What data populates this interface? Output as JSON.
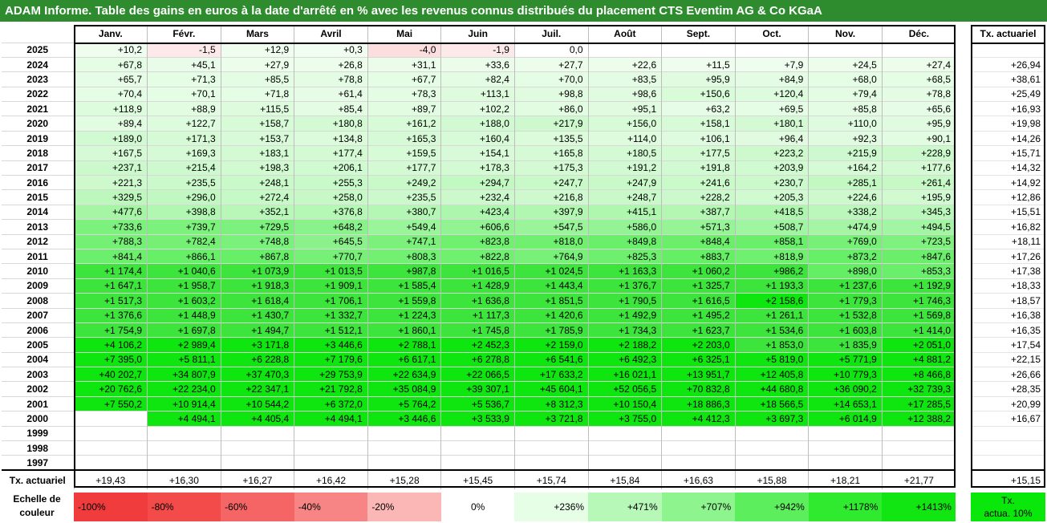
{
  "title": "ADAM Informe. Table des gains en euros à la date d'arrêté en % avec les revenus connus distribués du placement CTS Eventim AG & Co KGaA",
  "months": [
    "Janv.",
    "Févr.",
    "Mars",
    "Avril",
    "Mai",
    "Juin",
    "Juil.",
    "Août",
    "Sept.",
    "Oct.",
    "Nov.",
    "Déc."
  ],
  "tx_header": "Tx. actuariel",
  "rows": [
    {
      "year": "2025",
      "values": [
        "+10,2",
        "-1,5",
        "+12,9",
        "+0,3",
        "-4,0",
        "-1,9",
        "0,0",
        "",
        "",
        "",
        "",
        ""
      ],
      "tx": ""
    },
    {
      "year": "2024",
      "values": [
        "+67,8",
        "+45,1",
        "+27,9",
        "+26,8",
        "+31,1",
        "+33,6",
        "+27,7",
        "+22,6",
        "+11,5",
        "+7,9",
        "+24,5",
        "+27,4"
      ],
      "tx": "+26,94"
    },
    {
      "year": "2023",
      "values": [
        "+65,7",
        "+71,3",
        "+85,5",
        "+78,8",
        "+67,7",
        "+82,4",
        "+70,0",
        "+83,5",
        "+95,9",
        "+84,9",
        "+68,0",
        "+68,5"
      ],
      "tx": "+38,61"
    },
    {
      "year": "2022",
      "values": [
        "+70,4",
        "+70,1",
        "+71,8",
        "+61,4",
        "+78,3",
        "+113,1",
        "+98,8",
        "+98,6",
        "+150,6",
        "+120,4",
        "+79,4",
        "+78,8"
      ],
      "tx": "+25,49"
    },
    {
      "year": "2021",
      "values": [
        "+118,9",
        "+88,9",
        "+115,5",
        "+85,4",
        "+89,7",
        "+102,2",
        "+86,0",
        "+95,1",
        "+63,2",
        "+69,5",
        "+85,8",
        "+65,6"
      ],
      "tx": "+16,93"
    },
    {
      "year": "2020",
      "values": [
        "+89,4",
        "+122,7",
        "+158,7",
        "+180,8",
        "+161,2",
        "+188,0",
        "+217,9",
        "+156,0",
        "+158,1",
        "+180,1",
        "+110,0",
        "+95,9"
      ],
      "tx": "+19,98"
    },
    {
      "year": "2019",
      "values": [
        "+189,0",
        "+171,3",
        "+153,7",
        "+134,8",
        "+165,3",
        "+160,4",
        "+135,5",
        "+114,0",
        "+106,1",
        "+96,4",
        "+92,3",
        "+90,1"
      ],
      "tx": "+14,26"
    },
    {
      "year": "2018",
      "values": [
        "+167,5",
        "+169,3",
        "+183,1",
        "+177,4",
        "+159,5",
        "+154,1",
        "+165,8",
        "+180,5",
        "+177,5",
        "+223,2",
        "+215,9",
        "+228,9"
      ],
      "tx": "+15,71"
    },
    {
      "year": "2017",
      "values": [
        "+237,1",
        "+215,4",
        "+198,3",
        "+206,1",
        "+177,7",
        "+178,3",
        "+175,3",
        "+191,2",
        "+191,8",
        "+203,9",
        "+164,2",
        "+177,6"
      ],
      "tx": "+14,32"
    },
    {
      "year": "2016",
      "values": [
        "+221,3",
        "+235,5",
        "+248,1",
        "+255,3",
        "+249,2",
        "+294,7",
        "+247,7",
        "+247,9",
        "+241,6",
        "+230,7",
        "+285,1",
        "+261,4"
      ],
      "tx": "+14,92"
    },
    {
      "year": "2015",
      "values": [
        "+329,5",
        "+296,0",
        "+272,4",
        "+258,0",
        "+235,5",
        "+232,4",
        "+216,8",
        "+248,7",
        "+228,2",
        "+205,3",
        "+224,6",
        "+195,9"
      ],
      "tx": "+12,86"
    },
    {
      "year": "2014",
      "values": [
        "+477,6",
        "+398,8",
        "+352,1",
        "+376,8",
        "+380,7",
        "+423,4",
        "+397,9",
        "+415,1",
        "+387,7",
        "+418,5",
        "+338,2",
        "+345,3"
      ],
      "tx": "+15,51"
    },
    {
      "year": "2013",
      "values": [
        "+733,6",
        "+739,7",
        "+729,5",
        "+648,2",
        "+549,4",
        "+606,6",
        "+547,5",
        "+586,0",
        "+571,3",
        "+508,7",
        "+474,9",
        "+494,5"
      ],
      "tx": "+16,82"
    },
    {
      "year": "2012",
      "values": [
        "+788,3",
        "+782,4",
        "+748,8",
        "+645,5",
        "+747,1",
        "+823,8",
        "+818,0",
        "+849,8",
        "+848,4",
        "+858,1",
        "+769,0",
        "+723,5"
      ],
      "tx": "+18,11"
    },
    {
      "year": "2011",
      "values": [
        "+841,4",
        "+866,1",
        "+867,8",
        "+770,7",
        "+808,3",
        "+822,8",
        "+764,9",
        "+825,3",
        "+883,7",
        "+818,9",
        "+873,2",
        "+847,6"
      ],
      "tx": "+17,26"
    },
    {
      "year": "2010",
      "values": [
        "+1 174,4",
        "+1 040,6",
        "+1 073,9",
        "+1 013,5",
        "+987,8",
        "+1 016,5",
        "+1 024,5",
        "+1 163,3",
        "+1 060,2",
        "+986,2",
        "+898,0",
        "+853,3"
      ],
      "tx": "+17,38"
    },
    {
      "year": "2009",
      "values": [
        "+1 647,1",
        "+1 958,7",
        "+1 918,3",
        "+1 909,1",
        "+1 585,4",
        "+1 428,9",
        "+1 443,4",
        "+1 376,7",
        "+1 325,7",
        "+1 193,3",
        "+1 237,6",
        "+1 192,9"
      ],
      "tx": "+18,33"
    },
    {
      "year": "2008",
      "values": [
        "+1 517,3",
        "+1 603,2",
        "+1 618,4",
        "+1 706,1",
        "+1 559,8",
        "+1 636,8",
        "+1 851,5",
        "+1 790,5",
        "+1 616,5",
        "+2 158,6",
        "+1 779,3",
        "+1 746,3"
      ],
      "tx": "+18,57"
    },
    {
      "year": "2007",
      "values": [
        "+1 376,6",
        "+1 448,9",
        "+1 430,7",
        "+1 332,7",
        "+1 224,3",
        "+1 117,3",
        "+1 420,6",
        "+1 492,9",
        "+1 495,2",
        "+1 261,1",
        "+1 532,8",
        "+1 569,8"
      ],
      "tx": "+16,38"
    },
    {
      "year": "2006",
      "values": [
        "+1 754,9",
        "+1 697,8",
        "+1 494,7",
        "+1 512,1",
        "+1 860,1",
        "+1 745,8",
        "+1 785,9",
        "+1 734,3",
        "+1 623,7",
        "+1 534,6",
        "+1 603,8",
        "+1 414,0"
      ],
      "tx": "+16,35"
    },
    {
      "year": "2005",
      "values": [
        "+4 106,2",
        "+2 989,4",
        "+3 171,8",
        "+3 446,6",
        "+2 788,1",
        "+2 452,3",
        "+2 159,0",
        "+2 188,2",
        "+2 203,0",
        "+1 853,0",
        "+1 835,9",
        "+2 051,0"
      ],
      "tx": "+17,54"
    },
    {
      "year": "2004",
      "values": [
        "+7 395,0",
        "+5 811,1",
        "+6 228,8",
        "+7 179,6",
        "+6 617,1",
        "+6 278,8",
        "+6 541,6",
        "+6 492,3",
        "+6 325,1",
        "+5 819,0",
        "+5 771,9",
        "+4 881,2"
      ],
      "tx": "+22,15"
    },
    {
      "year": "2003",
      "values": [
        "+40 202,7",
        "+34 807,9",
        "+37 470,3",
        "+29 753,9",
        "+22 634,9",
        "+22 066,5",
        "+17 633,2",
        "+16 021,1",
        "+13 951,7",
        "+12 405,8",
        "+10 779,3",
        "+8 466,8"
      ],
      "tx": "+26,66"
    },
    {
      "year": "2002",
      "values": [
        "+20 762,6",
        "+22 234,0",
        "+22 347,1",
        "+21 792,8",
        "+35 084,9",
        "+39 307,1",
        "+45 604,1",
        "+52 056,5",
        "+70 832,8",
        "+44 680,8",
        "+36 090,2",
        "+32 739,3"
      ],
      "tx": "+28,35"
    },
    {
      "year": "2001",
      "values": [
        "+7 550,2",
        "+10 914,4",
        "+10 544,2",
        "+6 372,0",
        "+5 764,2",
        "+5 536,7",
        "+8 312,3",
        "+10 150,4",
        "+18 886,3",
        "+18 566,5",
        "+14 653,1",
        "+17 285,5"
      ],
      "tx": "+20,99"
    },
    {
      "year": "2000",
      "values": [
        "",
        "+4 494,1",
        "+4 405,4",
        "+4 494,1",
        "+3 446,6",
        "+3 533,9",
        "+3 721,8",
        "+3 755,0",
        "+4 412,3",
        "+3 697,3",
        "+6 014,9",
        "+12 388,2"
      ],
      "tx": "+16,67"
    },
    {
      "year": "1999",
      "values": [
        "",
        "",
        "",
        "",
        "",
        "",
        "",
        "",
        "",
        "",
        "",
        ""
      ],
      "tx": ""
    },
    {
      "year": "1998",
      "values": [
        "",
        "",
        "",
        "",
        "",
        "",
        "",
        "",
        "",
        "",
        "",
        ""
      ],
      "tx": ""
    },
    {
      "year": "1997",
      "values": [
        "",
        "",
        "",
        "",
        "",
        "",
        "",
        "",
        "",
        "",
        "",
        ""
      ],
      "tx": ""
    }
  ],
  "footer": {
    "label": "Tx. actuariel",
    "values": [
      "+19,43",
      "+16,30",
      "+16,27",
      "+16,42",
      "+15,28",
      "+15,45",
      "+15,74",
      "+15,84",
      "+16,63",
      "+15,88",
      "+18,21",
      "+21,77"
    ],
    "tx": "+15,15"
  },
  "scale": {
    "label_line1": "Echelle de",
    "label_line2": "couleur",
    "steps": [
      {
        "label": "-100%",
        "color": "#f03c3c"
      },
      {
        "label": "-80%",
        "color": "#f34a4a"
      },
      {
        "label": "-60%",
        "color": "#f56565"
      },
      {
        "label": "-40%",
        "color": "#f88585"
      },
      {
        "label": "-20%",
        "color": "#fbb6b6"
      },
      {
        "label": "0%",
        "color": "#ffffff"
      },
      {
        "label": "+236%",
        "color": "#e6fde6"
      },
      {
        "label": "+471%",
        "color": "#b7f7b7"
      },
      {
        "label": "+707%",
        "color": "#8ef48e"
      },
      {
        "label": "+942%",
        "color": "#5cee5c"
      },
      {
        "label": "+1178%",
        "color": "#2fea2f"
      },
      {
        "label": "+1413%",
        "color": "#12e612"
      }
    ],
    "tx_line1": "Tx.",
    "tx_line2": "actua. 10%",
    "tx_color": "#0ae70a"
  },
  "colors": {
    "title_bg": "#2e8b2e",
    "title_text": "#ffffff",
    "neg_light": "#fde9e9",
    "neg_mid": "#fcdede"
  }
}
